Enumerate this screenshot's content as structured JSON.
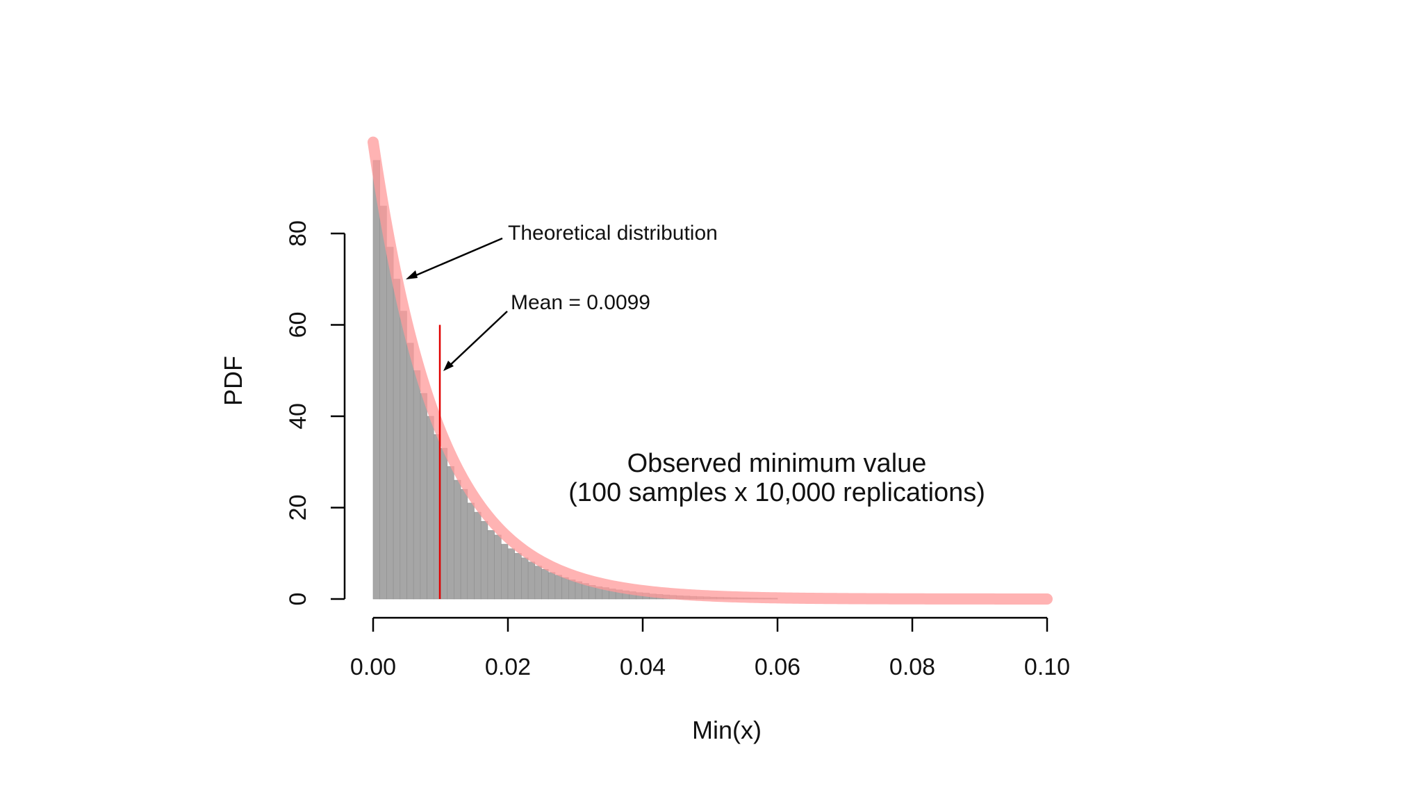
{
  "chart_data": {
    "type": "bar",
    "subtype": "histogram",
    "xlabel": "Min(x)",
    "ylabel": "PDF",
    "xlim": [
      0,
      0.1
    ],
    "ylim": [
      0,
      100
    ],
    "x_ticks": [
      "0.00",
      "0.02",
      "0.04",
      "0.06",
      "0.08",
      "0.10"
    ],
    "y_ticks": [
      "0",
      "20",
      "40",
      "60",
      "80"
    ],
    "grid": false,
    "histogram": {
      "bin_width": 0.001,
      "bin_start": 0,
      "values": [
        96,
        86,
        77,
        70,
        63,
        56,
        50,
        45,
        40,
        36,
        33,
        29,
        26,
        24,
        21,
        19,
        17,
        15,
        14,
        12,
        11,
        10,
        9,
        8.1,
        7.2,
        6.5,
        5.8,
        5.2,
        4.7,
        4.2,
        3.8,
        3.4,
        3.0,
        2.7,
        2.5,
        2.2,
        2.0,
        1.8,
        1.6,
        1.4,
        1.3,
        1.1,
        1.0,
        0.9,
        0.8,
        0.7,
        0.65,
        0.58,
        0.52,
        0.47,
        0.42,
        0.38,
        0.34,
        0.3,
        0.27,
        0.25,
        0.22,
        0.2,
        0.18,
        0.16
      ],
      "color": "#a6a6a6"
    },
    "series": [
      {
        "type": "line",
        "rate": 100,
        "x": [
          0.0,
          0.002,
          0.004,
          0.006,
          0.008,
          0.01,
          0.012,
          0.014,
          0.016,
          0.018,
          0.02,
          0.025,
          0.03,
          0.035,
          0.04,
          0.05,
          0.06,
          0.07,
          0.08,
          0.09,
          0.1
        ],
        "y": [
          100,
          81.9,
          67.0,
          54.9,
          44.9,
          36.8,
          30.1,
          24.7,
          20.2,
          16.5,
          13.5,
          8.2,
          5.0,
          3.0,
          1.8,
          0.67,
          0.25,
          0.09,
          0.03,
          0.01,
          0.0
        ],
        "color": "#ff9999"
      }
    ],
    "mean_line": {
      "x": 0.0099,
      "y_top": 60,
      "color": "#e00000"
    },
    "annotations": {
      "theoretical": "Theoretical distribution",
      "mean": "Mean = 0.0099",
      "observed_line1": "Observed minimum value",
      "observed_line2": "(100 samples x 10,000 replications)"
    }
  }
}
